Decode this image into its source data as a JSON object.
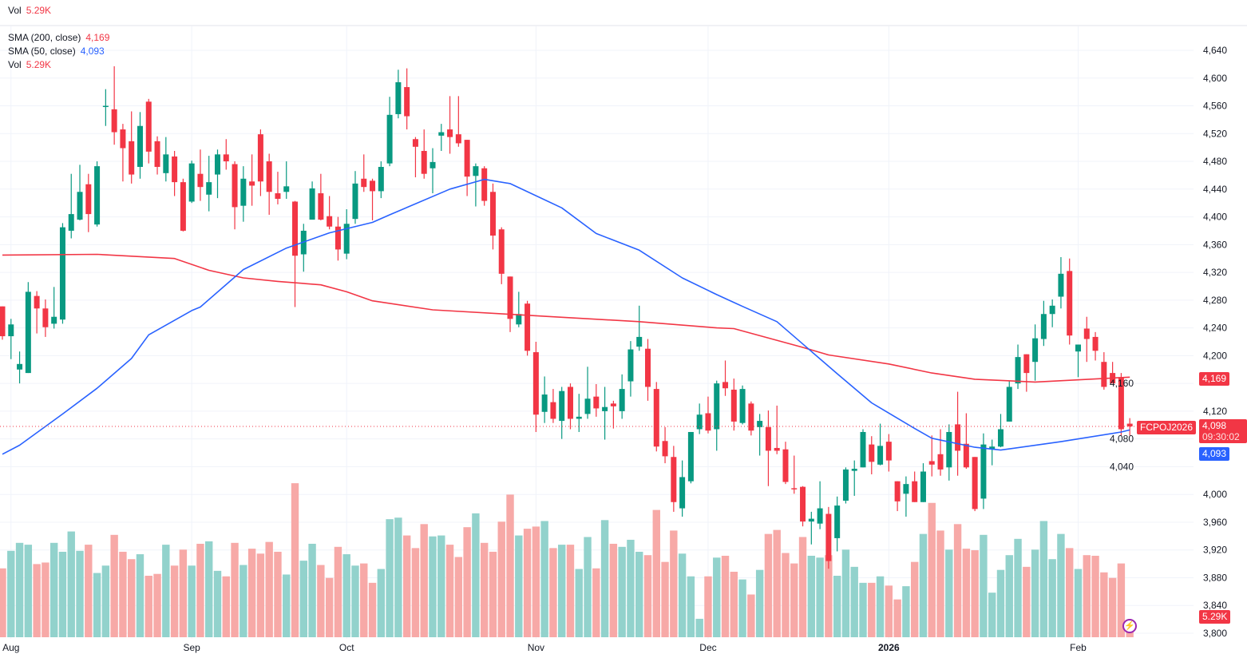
{
  "top_legend": {
    "label": "Vol",
    "value": "5.29K"
  },
  "legend": [
    {
      "label": "SMA (200, close)",
      "value": "4,169",
      "color": "#F23645"
    },
    {
      "label": "SMA (50, close)",
      "value": "4,093",
      "color": "#2962FF"
    },
    {
      "label": "Vol",
      "value": "5.29K",
      "color": "#F23645"
    }
  ],
  "price_labels": {
    "sma200": "4,169",
    "last_price": "4,098",
    "countdown": "09:30:02",
    "sma50": "4,093",
    "symbol": "FCPOJ2026",
    "volume": "5.29K"
  },
  "colors": {
    "up": "#089981",
    "down": "#F23645",
    "vol_up": "#92D2CC",
    "vol_down": "#F7A9A7",
    "sma200": "#F23645",
    "sma50": "#2962FF"
  },
  "chart_data": {
    "type": "candlestick",
    "title": "FCPOJ2026",
    "ylim": [
      3800,
      4640
    ],
    "yticks": [
      3800,
      3840,
      3880,
      3920,
      3960,
      4000,
      4040,
      4080,
      4120,
      4160,
      4200,
      4240,
      4280,
      4320,
      4360,
      4400,
      4440,
      4480,
      4520,
      4560,
      4600,
      4640
    ],
    "ytick_labels": [
      "3,800",
      "3,840",
      "3,880",
      "3,920",
      "3,960",
      "4,000",
      "4,040",
      "4,080",
      "4,120",
      "4,160",
      "4,200",
      "4,240",
      "4,280",
      "4,320",
      "4,360",
      "4,400",
      "4,440",
      "4,480",
      "4,520",
      "4,560",
      "4,600",
      "4,640"
    ],
    "x_labels": [
      {
        "label": "Aug",
        "index": 1,
        "bold": false
      },
      {
        "label": "Sep",
        "index": 22,
        "bold": false
      },
      {
        "label": "Oct",
        "index": 40,
        "bold": false
      },
      {
        "label": "Nov",
        "index": 62,
        "bold": false
      },
      {
        "label": "Dec",
        "index": 82,
        "bold": false
      },
      {
        "label": "2026",
        "index": 103,
        "bold": true
      },
      {
        "label": "Feb",
        "index": 125,
        "bold": false
      }
    ],
    "last_price": 4098,
    "ohlc": [
      [
        4271,
        4271,
        4223,
        4228
      ],
      [
        4228,
        4253,
        4195,
        4245
      ],
      [
        4180,
        4206,
        4160,
        4188
      ],
      [
        4175,
        4306,
        4175,
        4292
      ],
      [
        4286,
        4293,
        4232,
        4268
      ],
      [
        4268,
        4281,
        4227,
        4241
      ],
      [
        4246,
        4299,
        4239,
        4256
      ],
      [
        4252,
        4391,
        4246,
        4385
      ],
      [
        4380,
        4462,
        4369,
        4404
      ],
      [
        4396,
        4475,
        4395,
        4436
      ],
      [
        4447,
        4462,
        4378,
        4404
      ],
      [
        4389,
        4480,
        4386,
        4473
      ],
      [
        4559,
        4584,
        4531,
        4560
      ],
      [
        4555,
        4617,
        4504,
        4522
      ],
      [
        4526,
        4534,
        4451,
        4499
      ],
      [
        4509,
        4552,
        4448,
        4461
      ],
      [
        4472,
        4551,
        4455,
        4531
      ],
      [
        4566,
        4570,
        4477,
        4494
      ],
      [
        4509,
        4516,
        4461,
        4472
      ],
      [
        4463,
        4515,
        4451,
        4490
      ],
      [
        4487,
        4495,
        4430,
        4450
      ],
      [
        4450,
        4455,
        4379,
        4380
      ],
      [
        4422,
        4481,
        4420,
        4477
      ],
      [
        4462,
        4497,
        4423,
        4443
      ],
      [
        4432,
        4488,
        4408,
        4450
      ],
      [
        4461,
        4497,
        4427,
        4490
      ],
      [
        4490,
        4512,
        4468,
        4480
      ],
      [
        4476,
        4480,
        4382,
        4414
      ],
      [
        4416,
        4473,
        4393,
        4455
      ],
      [
        4451,
        4490,
        4416,
        4445
      ],
      [
        4519,
        4526,
        4430,
        4451
      ],
      [
        4480,
        4491,
        4403,
        4436
      ],
      [
        4434,
        4465,
        4418,
        4426
      ],
      [
        4436,
        4480,
        4426,
        4444
      ],
      [
        4422,
        4423,
        4270,
        4344
      ],
      [
        4346,
        4390,
        4321,
        4380
      ],
      [
        4396,
        4451,
        4396,
        4441
      ],
      [
        4434,
        4462,
        4395,
        4396
      ],
      [
        4401,
        4430,
        4382,
        4386
      ],
      [
        4386,
        4400,
        4337,
        4353
      ],
      [
        4347,
        4411,
        4339,
        4390
      ],
      [
        4397,
        4466,
        4390,
        4448
      ],
      [
        4455,
        4490,
        4436,
        4443
      ],
      [
        4452,
        4455,
        4395,
        4437
      ],
      [
        4437,
        4480,
        4427,
        4472
      ],
      [
        4477,
        4573,
        4473,
        4547
      ],
      [
        4548,
        4612,
        4542,
        4594
      ],
      [
        4587,
        4614,
        4526,
        4545
      ],
      [
        4512,
        4515,
        4457,
        4501
      ],
      [
        4495,
        4526,
        4455,
        4462
      ],
      [
        4470,
        4499,
        4434,
        4479
      ],
      [
        4517,
        4534,
        4495,
        4522
      ],
      [
        4526,
        4574,
        4491,
        4515
      ],
      [
        4519,
        4574,
        4501,
        4506
      ],
      [
        4511,
        4511,
        4430,
        4458
      ],
      [
        4459,
        4477,
        4415,
        4473
      ],
      [
        4470,
        4473,
        4416,
        4423
      ],
      [
        4436,
        4448,
        4353,
        4373
      ],
      [
        4382,
        4385,
        4303,
        4318
      ],
      [
        4314,
        4314,
        4234,
        4253
      ],
      [
        4245,
        4292,
        4241,
        4260
      ],
      [
        4275,
        4279,
        4200,
        4207
      ],
      [
        4205,
        4220,
        4090,
        4115
      ],
      [
        4119,
        4170,
        4103,
        4144
      ],
      [
        4133,
        4152,
        4103,
        4109
      ],
      [
        4106,
        4155,
        4080,
        4149
      ],
      [
        4155,
        4160,
        4094,
        4109
      ],
      [
        4109,
        4145,
        4090,
        4112
      ],
      [
        4116,
        4184,
        4109,
        4138
      ],
      [
        4141,
        4159,
        4112,
        4124
      ],
      [
        4120,
        4155,
        4079,
        4126
      ],
      [
        4131,
        4135,
        4095,
        4127
      ],
      [
        4120,
        4173,
        4109,
        4152
      ],
      [
        4163,
        4221,
        4141,
        4209
      ],
      [
        4213,
        4272,
        4207,
        4227
      ],
      [
        4210,
        4224,
        4135,
        4155
      ],
      [
        4152,
        4162,
        4062,
        4069
      ],
      [
        4077,
        4097,
        4045,
        4055
      ],
      [
        4054,
        4070,
        3975,
        3989
      ],
      [
        3980,
        4049,
        3968,
        4025
      ],
      [
        4019,
        4090,
        4016,
        4090
      ],
      [
        4094,
        4131,
        4087,
        4115
      ],
      [
        4117,
        4141,
        4088,
        4092
      ],
      [
        4094,
        4164,
        4063,
        4160
      ],
      [
        4162,
        4193,
        4142,
        4153
      ],
      [
        4151,
        4167,
        4092,
        4105
      ],
      [
        4103,
        4157,
        4101,
        4152
      ],
      [
        4131,
        4134,
        4085,
        4092
      ],
      [
        4097,
        4116,
        4056,
        4106
      ],
      [
        4097,
        4121,
        4012,
        4063
      ],
      [
        4067,
        4128,
        4058,
        4063
      ],
      [
        4065,
        4076,
        4015,
        4018
      ],
      [
        4009,
        4056,
        4001,
        4008
      ],
      [
        4011,
        4012,
        3954,
        3961
      ],
      [
        3961,
        3975,
        3928,
        3965
      ],
      [
        3958,
        4019,
        3950,
        3980
      ],
      [
        3972,
        3982,
        3893,
        3904
      ],
      [
        3937,
        3997,
        3918,
        3984
      ],
      [
        3991,
        4039,
        3987,
        4036
      ],
      [
        4034,
        4049,
        3998,
        4037
      ],
      [
        4039,
        4094,
        4039,
        4090
      ],
      [
        4072,
        4084,
        4029,
        4047
      ],
      [
        4043,
        4102,
        4042,
        4070
      ],
      [
        4076,
        4087,
        4033,
        4049
      ],
      [
        4019,
        4019,
        3976,
        3990
      ],
      [
        4001,
        4026,
        3968,
        4015
      ],
      [
        4019,
        4033,
        3989,
        3989
      ],
      [
        3989,
        4045,
        3989,
        4033
      ],
      [
        4048,
        4085,
        4026,
        4043
      ],
      [
        4058,
        4094,
        4027,
        4036
      ],
      [
        4039,
        4101,
        4020,
        4090
      ],
      [
        4101,
        4148,
        4027,
        4063
      ],
      [
        4073,
        4117,
        4037,
        4039
      ],
      [
        4054,
        4054,
        3976,
        3979
      ],
      [
        3994,
        4088,
        3979,
        4072
      ],
      [
        4065,
        4079,
        4042,
        4069
      ],
      [
        4069,
        4116,
        4068,
        4094
      ],
      [
        4105,
        4163,
        4105,
        4155
      ],
      [
        4160,
        4216,
        4152,
        4198
      ],
      [
        4202,
        4202,
        4148,
        4175
      ],
      [
        4191,
        4245,
        4164,
        4225
      ],
      [
        4224,
        4279,
        4214,
        4260
      ],
      [
        4260,
        4281,
        4241,
        4272
      ],
      [
        4285,
        4342,
        4268,
        4318
      ],
      [
        4322,
        4340,
        4216,
        4229
      ],
      [
        4206,
        4216,
        4169,
        4216
      ],
      [
        4239,
        4256,
        4191,
        4224
      ],
      [
        4227,
        4234,
        4193,
        4207
      ],
      [
        4191,
        4205,
        4151,
        4155
      ],
      [
        4175,
        4191,
        4160,
        4160
      ],
      [
        4169,
        4175,
        4085,
        4094
      ],
      [
        4102,
        4110,
        4085,
        4098
      ]
    ],
    "volume_k": [
      22.4,
      28.1,
      30.7,
      30.1,
      23.8,
      24.3,
      30.7,
      27.8,
      34.4,
      28.1,
      30.1,
      20.9,
      23.3,
      33.3,
      27.8,
      25.4,
      27.0,
      20.0,
      20.6,
      30.1,
      23.3,
      28.5,
      23.3,
      30.4,
      31.2,
      21.6,
      19.8,
      30.7,
      23.5,
      28.8,
      27.2,
      31.0,
      27.8,
      20.4,
      50.1,
      24.9,
      30.4,
      23.5,
      19.3,
      29.4,
      27.0,
      23.3,
      24.0,
      17.7,
      22.2,
      38.4,
      38.9,
      33.1,
      29.0,
      36.8,
      32.8,
      33.1,
      30.1,
      26.1,
      35.8,
      40.3,
      30.7,
      27.8,
      37.6,
      46.4,
      33.1,
      35.3,
      36.0,
      37.8,
      29.0,
      30.1,
      30.1,
      22.2,
      32.6,
      22.4,
      38.1,
      30.4,
      29.4,
      31.7,
      27.8,
      26.7,
      41.4,
      24.5,
      34.7,
      27.2,
      19.8,
      6.0,
      19.8,
      25.9,
      26.5,
      21.3,
      18.8,
      13.9,
      21.9,
      33.6,
      34.9,
      27.4,
      24.0,
      32.6,
      26.5,
      25.9,
      26.7,
      20.0,
      28.5,
      22.9,
      17.7,
      17.7,
      19.8,
      16.8,
      12.3,
      16.6,
      24.5,
      33.6,
      43.7,
      34.7,
      28.5,
      36.8,
      28.8,
      28.3,
      33.3,
      14.5,
      21.9,
      26.7,
      32.0,
      22.9,
      28.5,
      37.8,
      25.4,
      33.6,
      29.0,
      22.2,
      26.7,
      26.5,
      21.1,
      19.3,
      24.0,
      5.29
    ],
    "series": [
      {
        "name": "SMA (200, close)",
        "points": [
          [
            0,
            4345
          ],
          [
            11,
            4346
          ],
          [
            20,
            4340
          ],
          [
            24,
            4323
          ],
          [
            28,
            4312
          ],
          [
            32,
            4307
          ],
          [
            37,
            4302
          ],
          [
            40,
            4292
          ],
          [
            43,
            4279
          ],
          [
            50,
            4266
          ],
          [
            64,
            4256
          ],
          [
            74,
            4249
          ],
          [
            83,
            4240
          ],
          [
            85,
            4239
          ],
          [
            93,
            4212
          ],
          [
            96,
            4201
          ],
          [
            103,
            4188
          ],
          [
            108,
            4175
          ],
          [
            113,
            4166
          ],
          [
            120,
            4162
          ],
          [
            131,
            4169
          ]
        ]
      },
      {
        "name": "SMA (50, close)",
        "points": [
          [
            0,
            4058
          ],
          [
            2,
            4071
          ],
          [
            7,
            4116
          ],
          [
            11,
            4153
          ],
          [
            15,
            4196
          ],
          [
            17,
            4230
          ],
          [
            22,
            4265
          ],
          [
            23,
            4270
          ],
          [
            28,
            4324
          ],
          [
            33,
            4355
          ],
          [
            38,
            4377
          ],
          [
            43,
            4392
          ],
          [
            45,
            4403
          ],
          [
            52,
            4440
          ],
          [
            56,
            4454
          ],
          [
            59,
            4448
          ],
          [
            65,
            4413
          ],
          [
            69,
            4376
          ],
          [
            74,
            4352
          ],
          [
            79,
            4312
          ],
          [
            83,
            4288
          ],
          [
            86,
            4271
          ],
          [
            90,
            4249
          ],
          [
            97,
            4174
          ],
          [
            101,
            4132
          ],
          [
            106,
            4095
          ],
          [
            108,
            4081
          ],
          [
            113,
            4068
          ],
          [
            116,
            4064
          ],
          [
            123,
            4076
          ],
          [
            130,
            4090
          ],
          [
            131,
            4093
          ]
        ]
      }
    ]
  }
}
